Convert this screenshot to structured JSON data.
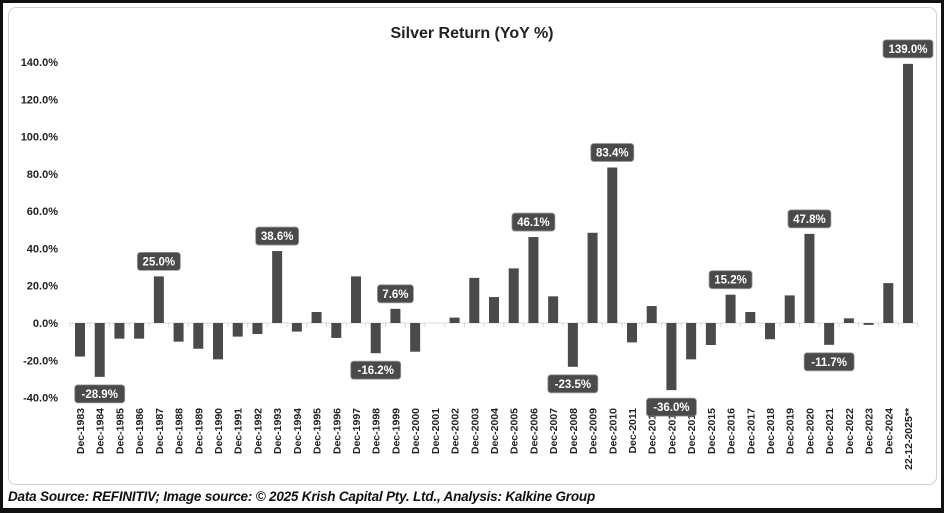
{
  "chart_data": {
    "type": "bar",
    "title": "Silver Return (YoY %)",
    "xlabel": "",
    "ylabel": "",
    "ylim": [
      -40,
      140
    ],
    "yticks": [
      -40,
      -20,
      0,
      20,
      40,
      60,
      80,
      100,
      120,
      140
    ],
    "ytick_labels": [
      "-40.0%",
      "-20.0%",
      "0.0%",
      "20.0%",
      "40.0%",
      "60.0%",
      "80.0%",
      "100.0%",
      "120.0%",
      "140.0%"
    ],
    "grid": false,
    "legend": "none",
    "bar_color": "#4a4a4a",
    "categories": [
      "Dec-1983",
      "Dec-1984",
      "Dec-1985",
      "Dec-1986",
      "Dec-1987",
      "Dec-1988",
      "Dec-1989",
      "Dec-1990",
      "Dec-1991",
      "Dec-1992",
      "Dec-1993",
      "Dec-1994",
      "Dec-1995",
      "Dec-1996",
      "Dec-1997",
      "Dec-1998",
      "Dec-1999",
      "Dec-2000",
      "Dec-2001",
      "Dec-2002",
      "Dec-2003",
      "Dec-2004",
      "Dec-2005",
      "Dec-2006",
      "Dec-2007",
      "Dec-2008",
      "Dec-2009",
      "Dec-2010",
      "Dec-2011",
      "Dec-2012",
      "Dec-2013",
      "Dec-2014",
      "Dec-2015",
      "Dec-2016",
      "Dec-2017",
      "Dec-2018",
      "Dec-2019",
      "Dec-2020",
      "Dec-2021",
      "Dec-2022",
      "Dec-2023",
      "Dec-2024",
      "22-12-2025**"
    ],
    "values": [
      -18.0,
      -28.9,
      -8.4,
      -8.4,
      25.0,
      -10.0,
      -13.8,
      -19.5,
      -7.3,
      -5.9,
      38.6,
      -4.6,
      5.9,
      -8.0,
      25.0,
      -16.2,
      7.6,
      -15.4,
      0.0,
      2.9,
      24.2,
      13.9,
      29.3,
      46.1,
      14.3,
      -23.5,
      48.4,
      83.4,
      -10.4,
      9.1,
      -36.0,
      -19.5,
      -11.8,
      15.2,
      5.9,
      -8.7,
      14.8,
      47.8,
      -11.7,
      2.5,
      -1.0,
      21.4,
      139.0
    ],
    "data_labels": [
      {
        "index": 1,
        "text": "-28.9%"
      },
      {
        "index": 4,
        "text": "25.0%"
      },
      {
        "index": 10,
        "text": "38.6%"
      },
      {
        "index": 15,
        "text": "-16.2%"
      },
      {
        "index": 16,
        "text": "7.6%"
      },
      {
        "index": 23,
        "text": "46.1%"
      },
      {
        "index": 25,
        "text": "-23.5%"
      },
      {
        "index": 27,
        "text": "83.4%"
      },
      {
        "index": 30,
        "text": "-36.0%"
      },
      {
        "index": 33,
        "text": "15.2%"
      },
      {
        "index": 37,
        "text": "47.8%"
      },
      {
        "index": 38,
        "text": "-11.7%"
      },
      {
        "index": 42,
        "text": "139.0%"
      }
    ]
  },
  "footer": "Data Source: REFINITIV; Image source: © 2025 Krish Capital Pty. Ltd., Analysis: Kalkine Group"
}
